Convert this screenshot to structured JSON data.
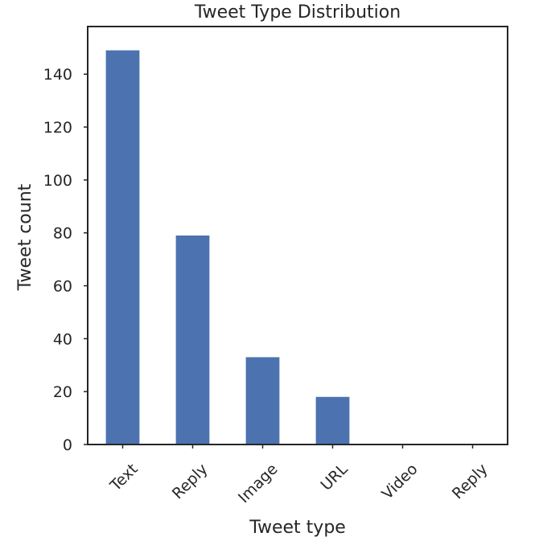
{
  "chart_data": {
    "type": "bar",
    "title": "Tweet Type Distribution",
    "xlabel": "Tweet type",
    "ylabel": "Tweet count",
    "categories": [
      "Text",
      "Reply",
      "Image",
      "URL",
      "Video",
      "Reply"
    ],
    "values": [
      149,
      79,
      33,
      18,
      0,
      0
    ],
    "ylim": [
      0,
      158
    ],
    "yticks": [
      0,
      20,
      40,
      60,
      80,
      100,
      120,
      140
    ],
    "grid": false,
    "bar_color": "#4c72b0"
  }
}
